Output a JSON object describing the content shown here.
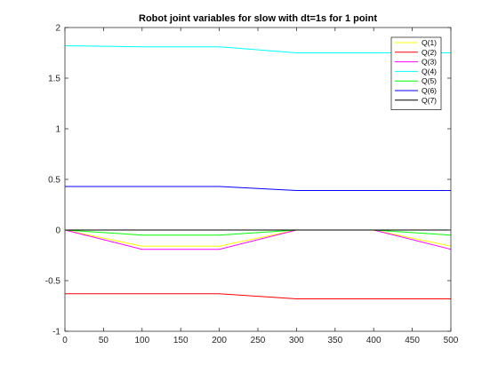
{
  "chart_data": {
    "type": "line",
    "title": "Robot joint variables for slow with dt=1s for 1 point",
    "xlabel": "",
    "ylabel": "",
    "xlim": [
      0,
      500
    ],
    "ylim": [
      -1,
      2
    ],
    "xticks": [
      0,
      50,
      100,
      150,
      200,
      250,
      300,
      350,
      400,
      450,
      500
    ],
    "yticks": [
      -1,
      -0.5,
      0,
      0.5,
      1,
      1.5,
      2
    ],
    "ytick_labels": [
      "-1",
      "-0.5",
      "0",
      "0.5",
      "1",
      "1.5",
      "2"
    ],
    "grid": false,
    "legend_position": "top-right",
    "series": [
      {
        "name": "Q(1)",
        "color": "#ffff00",
        "x": [
          0,
          100,
          200,
          300,
          400,
          500
        ],
        "y": [
          0,
          -0.16,
          -0.16,
          0,
          0,
          -0.16
        ]
      },
      {
        "name": "Q(2)",
        "color": "#ff0000",
        "x": [
          0,
          100,
          200,
          300,
          400,
          500
        ],
        "y": [
          -0.63,
          -0.63,
          -0.63,
          -0.68,
          -0.68,
          -0.68
        ]
      },
      {
        "name": "Q(3)",
        "color": "#ff00ff",
        "x": [
          0,
          100,
          200,
          300,
          400,
          500
        ],
        "y": [
          0,
          -0.19,
          -0.19,
          0,
          0,
          -0.19
        ]
      },
      {
        "name": "Q(4)",
        "color": "#00ffff",
        "x": [
          0,
          100,
          200,
          300,
          400,
          500
        ],
        "y": [
          1.82,
          1.81,
          1.81,
          1.75,
          1.75,
          1.75
        ]
      },
      {
        "name": "Q(5)",
        "color": "#00ff00",
        "x": [
          0,
          100,
          200,
          300,
          400,
          500
        ],
        "y": [
          0,
          -0.05,
          -0.05,
          0,
          0,
          -0.05
        ]
      },
      {
        "name": "Q(6)",
        "color": "#0000ff",
        "x": [
          0,
          100,
          200,
          300,
          400,
          500
        ],
        "y": [
          0.43,
          0.43,
          0.43,
          0.39,
          0.39,
          0.39
        ]
      },
      {
        "name": "Q(7)",
        "color": "#000000",
        "x": [
          0,
          100,
          200,
          300,
          400,
          500
        ],
        "y": [
          0,
          0,
          0,
          0,
          0,
          0
        ]
      }
    ]
  }
}
